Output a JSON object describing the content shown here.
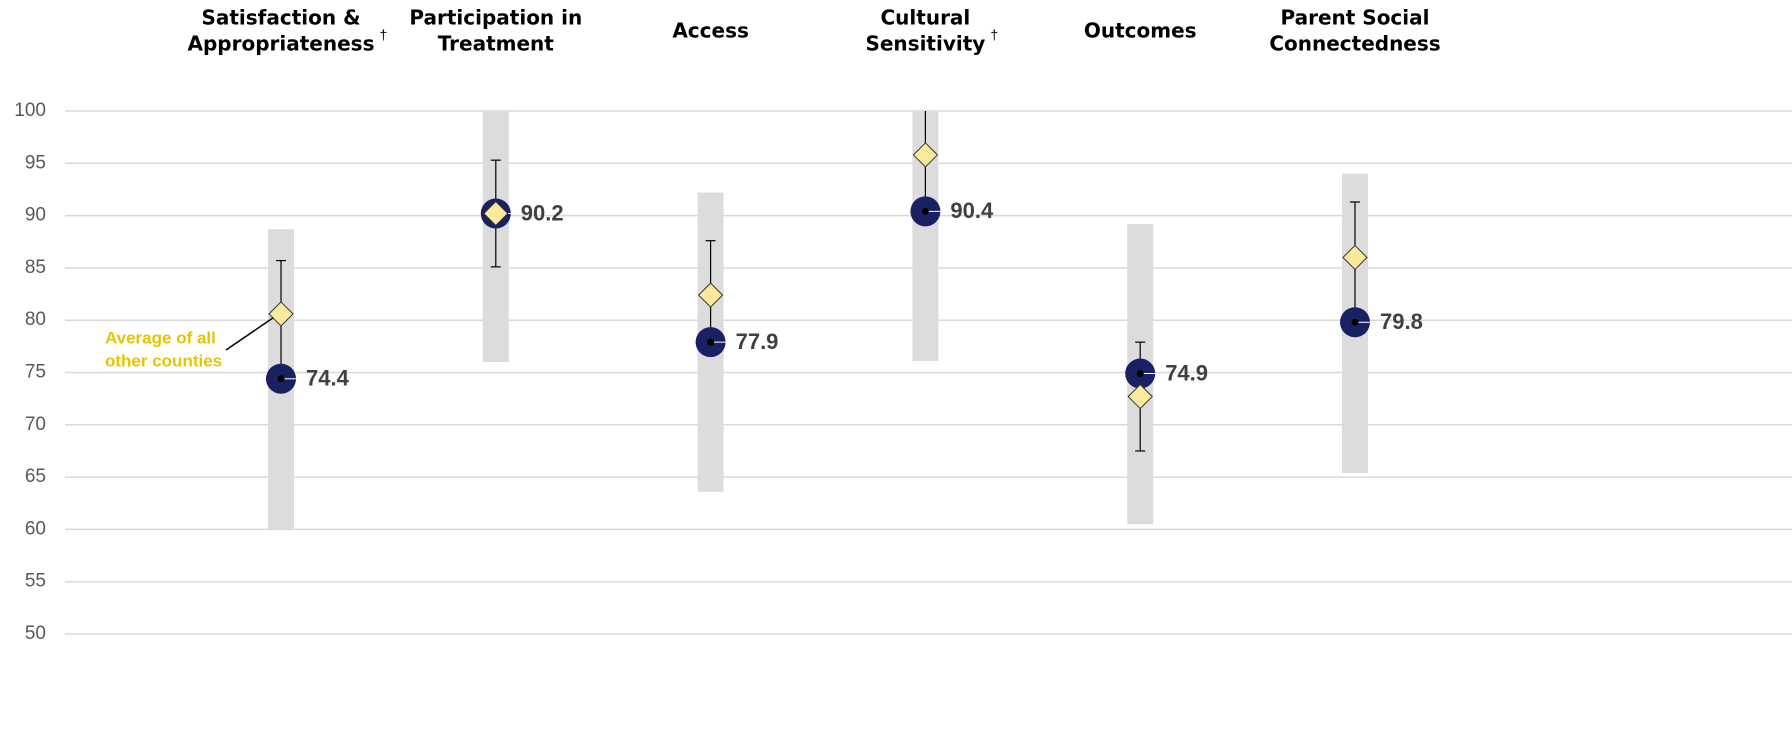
{
  "chart_data": {
    "type": "dot_range",
    "categories": [
      [
        "Satisfaction &",
        "Appropriateness"
      ],
      [
        "Participation in",
        "Treatment"
      ],
      [
        "Access"
      ],
      [
        "Cultural",
        "Sensitivity"
      ],
      [
        "Outcomes"
      ],
      [
        "Parent Social",
        "Connectedness"
      ]
    ],
    "footnote_markers": [
      "†",
      null,
      null,
      "†",
      null,
      null
    ],
    "range_low": [
      60,
      76,
      63.6,
      76.1,
      60.5,
      65.4
    ],
    "range_high": [
      88.7,
      100,
      92.2,
      100,
      89.2,
      94
    ],
    "range_color": "#dcdcdc",
    "county": {
      "values": [
        74.4,
        90.2,
        77.9,
        90.4,
        74.9,
        79.8
      ],
      "color": "#1a2163"
    },
    "average": {
      "values": [
        80.6,
        90.2,
        82.4,
        95.8,
        72.7,
        86.0
      ],
      "errors": [
        5.1,
        5.1,
        5.2,
        5.4,
        5.2,
        5.3
      ],
      "color": "#fbe99b"
    },
    "annotation": {
      "lines": [
        "Average of all",
        "other counties"
      ],
      "color": "#e8c300"
    },
    "ylim": [
      50,
      100
    ],
    "yticks": [
      50,
      55,
      60,
      65,
      70,
      75,
      80,
      85,
      90,
      95,
      100
    ],
    "grid": true
  }
}
